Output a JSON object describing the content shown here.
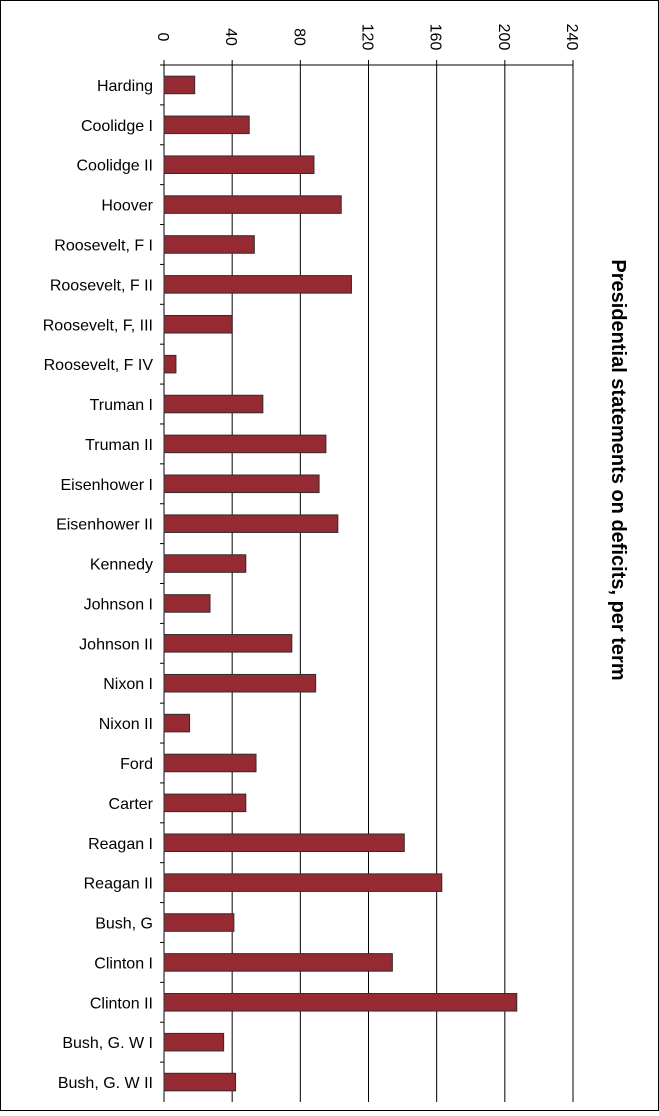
{
  "chart_data": {
    "type": "bar",
    "orientation": "horizontal",
    "title": "Presidential statements on deficits, per term",
    "xlabel": "",
    "ylabel": "",
    "xlim": [
      0,
      240
    ],
    "x_ticks": [
      0,
      40,
      80,
      120,
      160,
      200,
      240
    ],
    "grid": true,
    "legend": "none",
    "categories": [
      "Harding",
      "Coolidge I",
      "Coolidge II",
      "Hoover",
      "Roosevelt, F I",
      "Roosevelt, F II",
      "Roosevelt, F, III",
      "Roosevelt, F IV",
      "Truman I",
      "Truman II",
      "Eisenhower I",
      "Eisenhower II",
      "Kennedy",
      "Johnson I",
      "Johnson II",
      "Nixon I",
      "Nixon II",
      "Ford",
      "Carter",
      "Reagan I",
      "Reagan II",
      "Bush, G",
      "Clinton I",
      "Clinton II",
      "Bush, G. W I",
      "Bush, G. W II"
    ],
    "values": [
      18,
      50,
      88,
      104,
      53,
      110,
      40,
      7,
      58,
      95,
      91,
      102,
      48,
      27,
      75,
      89,
      15,
      54,
      48,
      141,
      163,
      41,
      134,
      207,
      35,
      42
    ],
    "bar_color": "#952A32",
    "bar_edge_color": "#2e2e2e"
  }
}
